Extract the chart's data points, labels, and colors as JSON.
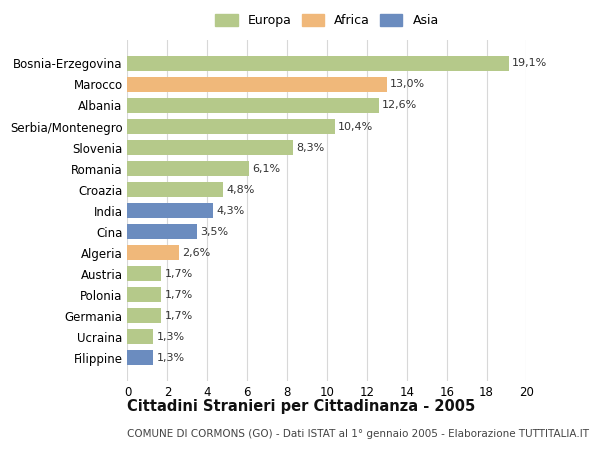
{
  "categories": [
    "Bosnia-Erzegovina",
    "Marocco",
    "Albania",
    "Serbia/Montenegro",
    "Slovenia",
    "Romania",
    "Croazia",
    "India",
    "Cina",
    "Algeria",
    "Austria",
    "Polonia",
    "Germania",
    "Ucraina",
    "Filippine"
  ],
  "values": [
    19.1,
    13.0,
    12.6,
    10.4,
    8.3,
    6.1,
    4.8,
    4.3,
    3.5,
    2.6,
    1.7,
    1.7,
    1.7,
    1.3,
    1.3
  ],
  "labels": [
    "19,1%",
    "13,0%",
    "12,6%",
    "10,4%",
    "8,3%",
    "6,1%",
    "4,8%",
    "4,3%",
    "3,5%",
    "2,6%",
    "1,7%",
    "1,7%",
    "1,7%",
    "1,3%",
    "1,3%"
  ],
  "continents": [
    "Europa",
    "Africa",
    "Europa",
    "Europa",
    "Europa",
    "Europa",
    "Europa",
    "Asia",
    "Asia",
    "Africa",
    "Europa",
    "Europa",
    "Europa",
    "Europa",
    "Asia"
  ],
  "colors": {
    "Europa": "#b5c98a",
    "Africa": "#f0b87a",
    "Asia": "#6b8cbf"
  },
  "title": "Cittadini Stranieri per Cittadinanza - 2005",
  "subtitle": "COMUNE DI CORMONS (GO) - Dati ISTAT al 1° gennaio 2005 - Elaborazione TUTTITALIA.IT",
  "xlim": [
    0,
    20
  ],
  "xticks": [
    0,
    2,
    4,
    6,
    8,
    10,
    12,
    14,
    16,
    18,
    20
  ],
  "background_color": "#ffffff",
  "grid_color": "#d8d8d8",
  "bar_height": 0.72,
  "label_fontsize": 8,
  "title_fontsize": 10.5,
  "subtitle_fontsize": 7.5,
  "ytick_fontsize": 8.5,
  "xtick_fontsize": 8.5,
  "legend_fontsize": 9
}
